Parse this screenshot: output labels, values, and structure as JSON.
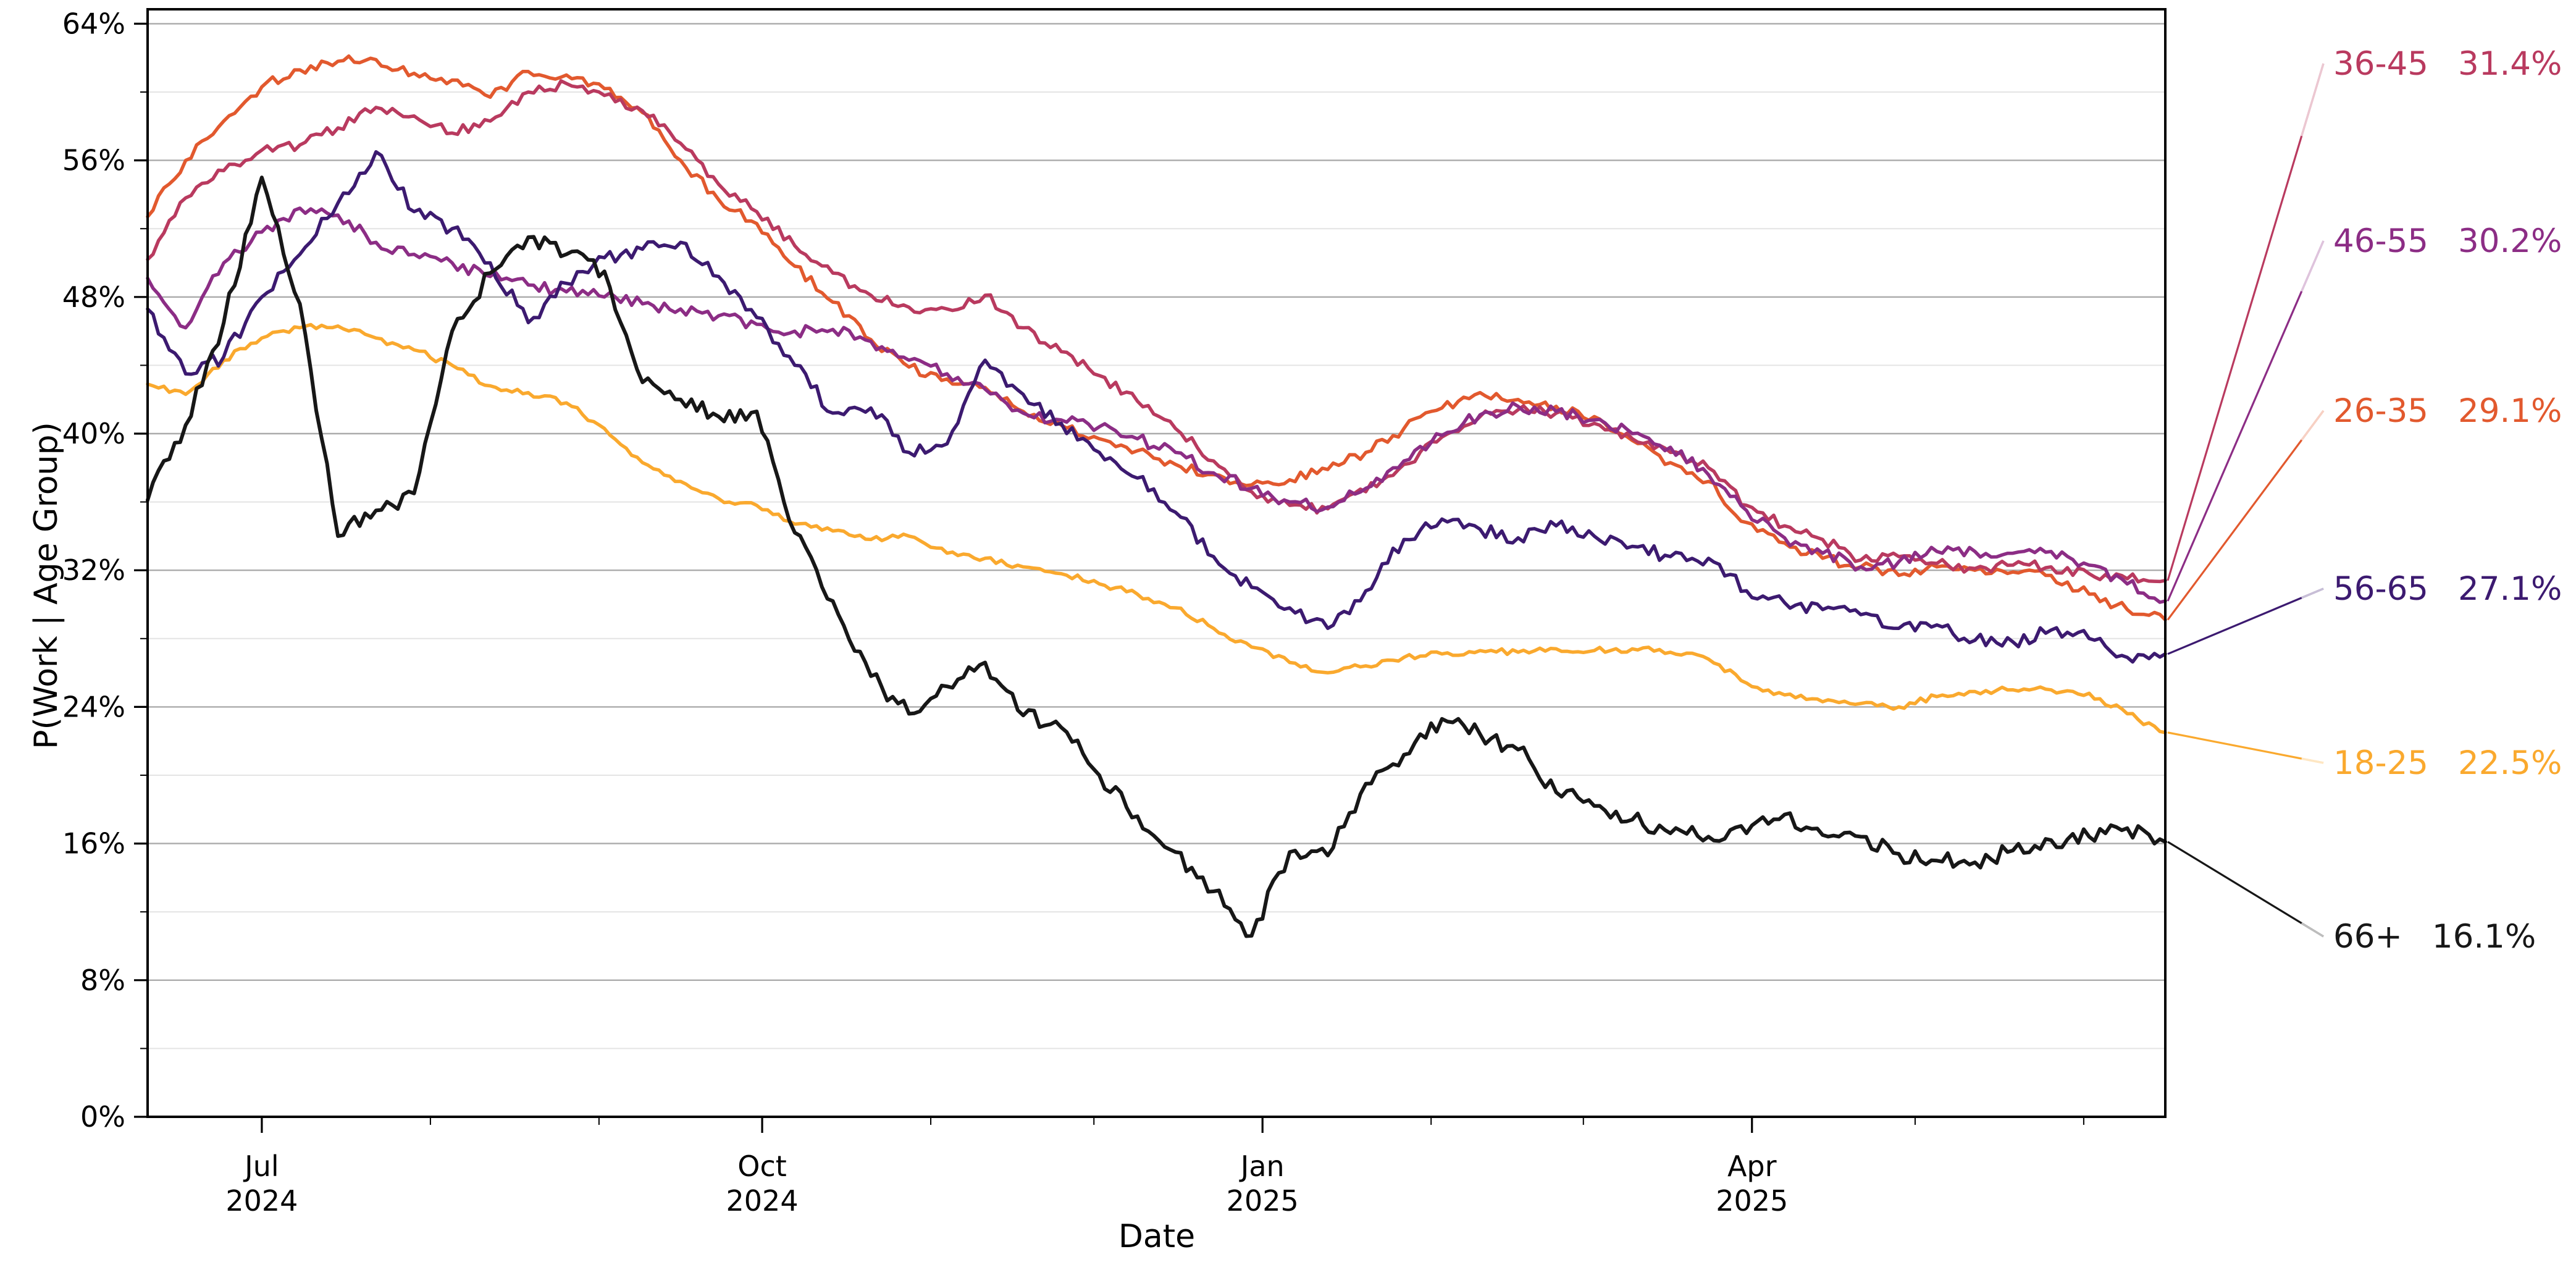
{
  "figure": {
    "background": "#ffffff",
    "plot_border_color": "#000000",
    "grid_major_color": "#ababab",
    "grid_minor_color": "#e4e4e4"
  },
  "axes": {
    "xlabel": "Date",
    "ylabel": "P(Work | Age Group)",
    "y_tick_labels": [
      "0%",
      "8%",
      "16%",
      "24%",
      "32%",
      "40%",
      "48%",
      "56%",
      "64%"
    ],
    "y_tick_values": [
      0,
      8,
      16,
      24,
      32,
      40,
      48,
      56,
      64
    ],
    "y_minor_tick_values": [
      4,
      12,
      20,
      28,
      36,
      44,
      52,
      60
    ],
    "x_major_ticks": [
      {
        "date": "2024-07-01",
        "line1": "Jul",
        "line2": "2024"
      },
      {
        "date": "2024-10-01",
        "line1": "Oct",
        "line2": "2024"
      },
      {
        "date": "2025-01-01",
        "line1": "Jan",
        "line2": "2025"
      },
      {
        "date": "2025-04-01",
        "line1": "Apr",
        "line2": "2025"
      }
    ],
    "x_minor_tick_dates": [
      "2024-08-01",
      "2024-09-01",
      "2024-11-01",
      "2024-12-01",
      "2025-02-01",
      "2025-03-01",
      "2025-05-01",
      "2025-06-01"
    ]
  },
  "legend": {
    "entries": [
      {
        "group": "36-45",
        "value": "31.4%",
        "color": "#b93a5f"
      },
      {
        "group": "46-55",
        "value": "30.2%",
        "color": "#8c2d85"
      },
      {
        "group": "26-35",
        "value": "29.1%",
        "color": "#e2592e"
      },
      {
        "group": "56-65",
        "value": "27.1%",
        "color": "#3c1a70"
      },
      {
        "group": "18-25",
        "value": "22.5%",
        "color": "#faa92e"
      },
      {
        "group": "66+",
        "value": "16.1%",
        "color": "#171717"
      }
    ]
  },
  "chart_data": {
    "type": "line",
    "title": "",
    "xlabel": "Date",
    "ylabel": "P(Work | Age Group)",
    "x_range": [
      "2024-06-10",
      "2025-06-16"
    ],
    "ylim": [
      0,
      64.85
    ],
    "grid": "horizontal only, light gray every 4%, slightly darker every 8%",
    "legend_position": "right-of-plot leader-line annotations",
    "x_weekly_dates": [
      "2024-06-10",
      "2024-06-17",
      "2024-06-24",
      "2024-07-01",
      "2024-07-08",
      "2024-07-15",
      "2024-07-22",
      "2024-07-29",
      "2024-08-05",
      "2024-08-12",
      "2024-08-19",
      "2024-08-26",
      "2024-09-02",
      "2024-09-09",
      "2024-09-16",
      "2024-09-23",
      "2024-09-30",
      "2024-10-07",
      "2024-10-14",
      "2024-10-21",
      "2024-10-28",
      "2024-11-04",
      "2024-11-11",
      "2024-11-18",
      "2024-11-25",
      "2024-12-02",
      "2024-12-09",
      "2024-12-16",
      "2024-12-23",
      "2024-12-30",
      "2025-01-06",
      "2025-01-13",
      "2025-01-20",
      "2025-01-27",
      "2025-02-03",
      "2025-02-10",
      "2025-02-17",
      "2025-02-24",
      "2025-03-03",
      "2025-03-10",
      "2025-03-17",
      "2025-03-24",
      "2025-03-31",
      "2025-04-07",
      "2025-04-14",
      "2025-04-21",
      "2025-04-28",
      "2025-05-05",
      "2025-05-12",
      "2025-05-19",
      "2025-05-26",
      "2025-06-02",
      "2025-06-09",
      "2025-06-16"
    ],
    "series": [
      {
        "name": "18-25",
        "color": "#faa92e",
        "final_label": "18-25  22.5%",
        "final_value": 22.5,
        "jitter": 0.18,
        "values": [
          42.9,
          42.3,
          44.3,
          45.6,
          46.2,
          46.3,
          45.6,
          44.9,
          44.0,
          42.8,
          42.4,
          41.8,
          40.3,
          38.3,
          37.2,
          36.2,
          35.8,
          34.7,
          34.3,
          33.8,
          34.0,
          33.0,
          32.7,
          32.2,
          31.8,
          31.2,
          30.6,
          29.8,
          28.6,
          27.5,
          26.6,
          26.0,
          26.4,
          26.9,
          27.1,
          27.3,
          27.2,
          27.4,
          27.3,
          27.4,
          27.2,
          26.8,
          25.4,
          24.7,
          24.3,
          24.2,
          24.0,
          24.6,
          24.9,
          25.0,
          25.0,
          24.8,
          23.6,
          22.5
        ]
      },
      {
        "name": "26-35",
        "color": "#e2592e",
        "final_label": "26-35  29.1%",
        "final_value": 29.1,
        "jitter": 0.3,
        "values": [
          52.7,
          56.0,
          58.3,
          60.3,
          61.3,
          61.8,
          61.9,
          61.1,
          60.7,
          59.7,
          61.2,
          61.0,
          60.2,
          58.8,
          56.0,
          53.7,
          52.3,
          49.8,
          47.7,
          45.5,
          43.9,
          43.2,
          42.7,
          41.3,
          40.5,
          39.7,
          39.0,
          38.2,
          37.6,
          37.0,
          37.3,
          37.9,
          38.9,
          40.3,
          41.5,
          42.4,
          42.0,
          41.6,
          41.0,
          39.6,
          38.3,
          37.2,
          34.8,
          33.6,
          32.7,
          32.2,
          31.7,
          32.2,
          32.0,
          31.9,
          31.7,
          30.6,
          29.7,
          29.1
        ]
      },
      {
        "name": "36-45",
        "color": "#b93a5f",
        "final_label": "36-45  31.4%",
        "final_value": 31.4,
        "jitter": 0.3,
        "values": [
          50.2,
          53.8,
          55.4,
          56.6,
          56.9,
          57.9,
          59.1,
          58.6,
          57.6,
          58.3,
          60.0,
          60.5,
          59.8,
          58.9,
          57.0,
          54.6,
          53.0,
          51.0,
          49.4,
          48.1,
          47.4,
          47.3,
          48.1,
          46.2,
          44.8,
          43.4,
          41.9,
          40.3,
          38.4,
          36.6,
          35.8,
          35.6,
          36.6,
          38.2,
          39.8,
          41.0,
          41.4,
          41.2,
          40.6,
          39.7,
          38.9,
          38.0,
          35.8,
          34.6,
          33.8,
          32.6,
          32.8,
          32.4,
          32.1,
          32.3,
          32.2,
          31.8,
          31.5,
          31.4
        ]
      },
      {
        "name": "46-55",
        "color": "#8c2d85",
        "final_label": "46-55  30.2%",
        "final_value": 30.2,
        "jitter": 0.35,
        "values": [
          49.1,
          46.2,
          50.0,
          51.8,
          53.2,
          52.8,
          51.2,
          50.5,
          50.0,
          49.2,
          48.7,
          48.3,
          48.0,
          47.6,
          47.3,
          46.9,
          46.4,
          46.0,
          46.1,
          45.4,
          44.3,
          43.5,
          42.6,
          41.2,
          40.8,
          40.4,
          39.7,
          38.9,
          37.7,
          36.8,
          36.0,
          35.7,
          36.8,
          38.4,
          39.9,
          41.1,
          41.6,
          41.3,
          40.8,
          40.0,
          39.2,
          37.6,
          35.5,
          33.9,
          33.0,
          32.2,
          32.5,
          33.1,
          33.1,
          33.0,
          33.1,
          32.3,
          31.2,
          30.2
        ]
      },
      {
        "name": "56-65",
        "color": "#3c1a70",
        "final_label": "56-65  27.1%",
        "final_value": 27.1,
        "jitter": 0.4,
        "values": [
          47.3,
          43.5,
          44.5,
          48.0,
          50.5,
          53.5,
          56.5,
          53.0,
          52.0,
          50.0,
          46.5,
          48.8,
          50.3,
          50.8,
          51.2,
          49.2,
          46.8,
          44.0,
          41.2,
          41.5,
          38.9,
          39.4,
          44.3,
          42.3,
          40.6,
          38.9,
          37.4,
          35.4,
          32.8,
          31.0,
          29.8,
          28.6,
          30.8,
          33.8,
          35.0,
          34.4,
          33.9,
          34.6,
          34.0,
          33.4,
          32.8,
          32.7,
          30.8,
          30.1,
          29.7,
          29.4,
          28.6,
          28.8,
          27.9,
          27.8,
          28.5,
          28.0,
          26.9,
          27.1
        ]
      },
      {
        "name": "66+",
        "color": "#171717",
        "final_label": "66+  16.1%",
        "final_value": 16.1,
        "jitter": 0.5,
        "values": [
          36.1,
          40.5,
          46.5,
          55.0,
          47.6,
          34.0,
          35.5,
          36.5,
          46.0,
          49.4,
          51.5,
          50.5,
          49.5,
          43.0,
          42.0,
          41.0,
          41.3,
          34.2,
          30.2,
          25.8,
          23.6,
          25.2,
          26.6,
          23.5,
          22.8,
          20.0,
          17.6,
          15.5,
          13.2,
          10.6,
          15.5,
          15.3,
          19.5,
          21.2,
          23.3,
          22.4,
          21.5,
          19.0,
          18.2,
          17.4,
          16.6,
          16.4,
          16.6,
          17.7,
          16.5,
          16.4,
          15.4,
          15.0,
          14.9,
          15.6,
          16.2,
          16.4,
          16.9,
          16.1
        ]
      }
    ]
  }
}
